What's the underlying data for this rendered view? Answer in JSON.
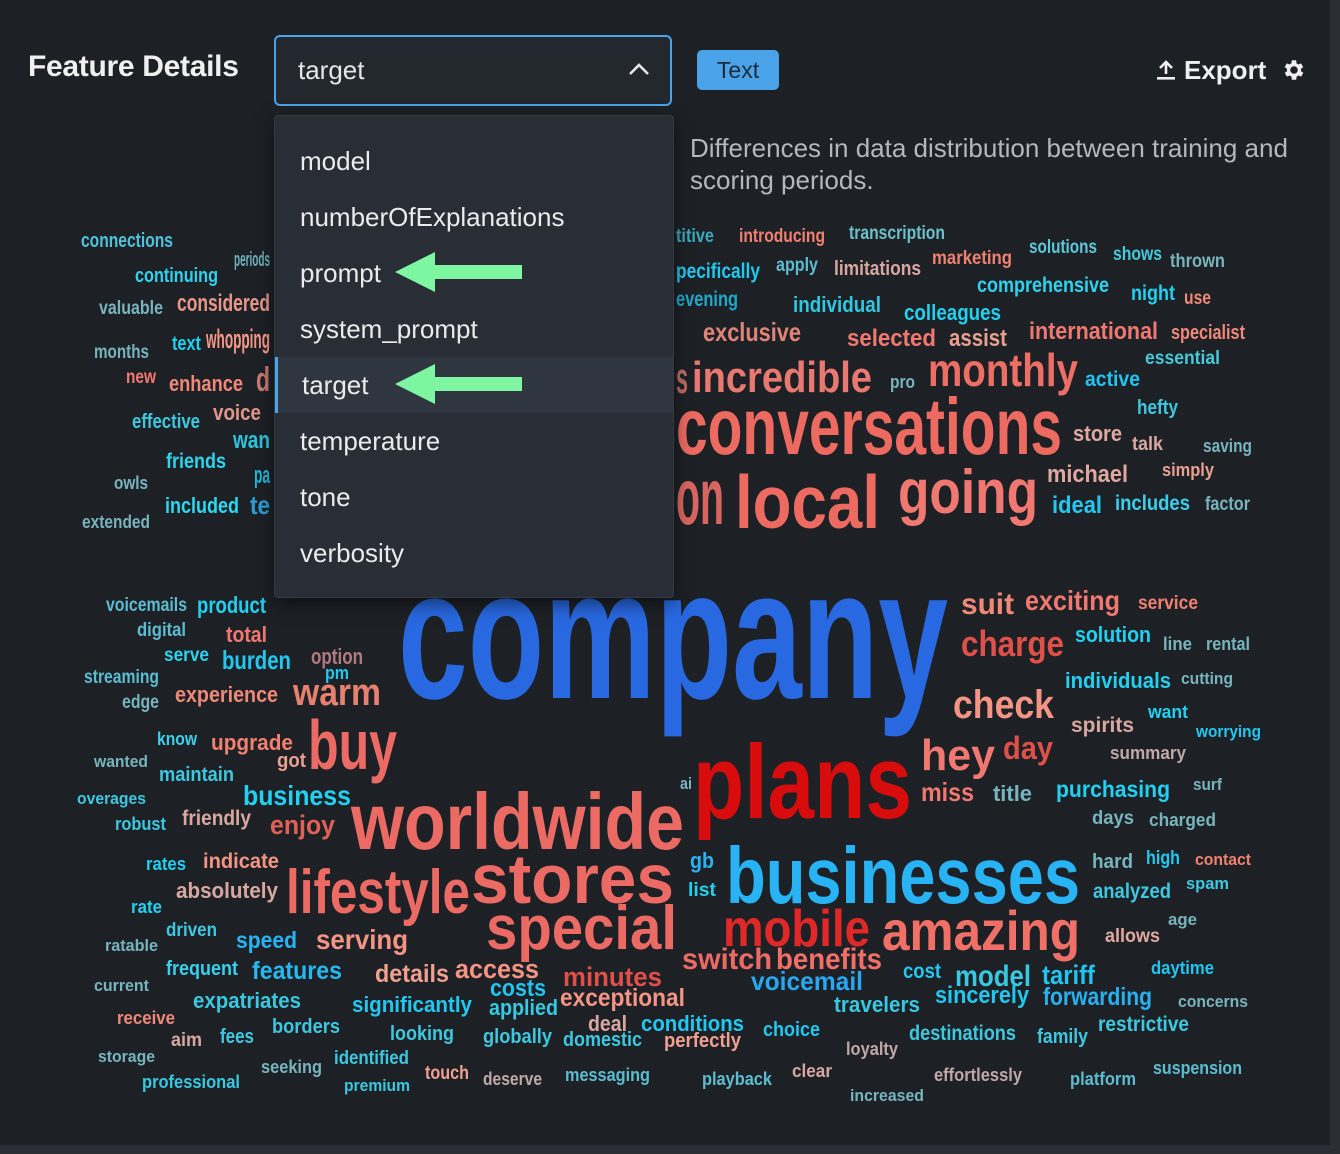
{
  "header": {
    "title": "Feature Details",
    "select": {
      "value": "target",
      "icon": "chevron-up-icon"
    },
    "type_badge": "Text",
    "export_label": "Export",
    "export_icon": "upload-icon",
    "settings_icon": "gear-icon"
  },
  "description": "Differences in data distribution between training and scoring periods.",
  "dropdown": {
    "options": [
      "model",
      "numberOfExplanations",
      "prompt",
      "system_prompt",
      "target",
      "temperature",
      "tone",
      "verbosity"
    ],
    "selected": "target",
    "annotation_arrow_color": "#7ef5a0",
    "annotated_options": [
      "prompt",
      "target"
    ]
  },
  "colors": {
    "accent": "#4aa3e8",
    "background": "#1d2126"
  },
  "wordcloud": {
    "words": [
      {
        "text": "connections",
        "color": "#4fc3d9"
      },
      {
        "text": "periods",
        "color": "#6fb0bd"
      },
      {
        "text": "continuing",
        "color": "#2ed3ee"
      },
      {
        "text": "valuable",
        "color": "#78b4be"
      },
      {
        "text": "considered",
        "color": "#e8968a"
      },
      {
        "text": "months",
        "color": "#78b4be"
      },
      {
        "text": "text",
        "color": "#22d0f0"
      },
      {
        "text": "whopping",
        "color": "#f59888"
      },
      {
        "text": "new",
        "color": "#f07870"
      },
      {
        "text": "enhance",
        "color": "#f08878"
      },
      {
        "text": "d",
        "color": "#c97a70"
      },
      {
        "text": "voice",
        "color": "#e0968a"
      },
      {
        "text": "effective",
        "color": "#3ec8e0"
      },
      {
        "text": "wan",
        "color": "#2cc4dc"
      },
      {
        "text": "friends",
        "color": "#2ed3ee"
      },
      {
        "text": "pa",
        "color": "#22b8d8"
      },
      {
        "text": "owls",
        "color": "#78b4be"
      },
      {
        "text": "included",
        "color": "#2ed8f0"
      },
      {
        "text": "te",
        "color": "#2a9fd6"
      },
      {
        "text": "extended",
        "color": "#78b4be"
      },
      {
        "text": "voicemails",
        "color": "#5cbcd0"
      },
      {
        "text": "product",
        "color": "#22d0f0"
      },
      {
        "text": "digital",
        "color": "#5cbcd0"
      },
      {
        "text": "total",
        "color": "#f07870"
      },
      {
        "text": "serve",
        "color": "#2ed3ee"
      },
      {
        "text": "burden",
        "color": "#22c8ee"
      },
      {
        "text": "option",
        "color": "#b07a80"
      },
      {
        "text": "streaming",
        "color": "#5cbcd0"
      },
      {
        "text": "edge",
        "color": "#78b4be"
      },
      {
        "text": "experience",
        "color": "#f08878"
      },
      {
        "text": "warm",
        "color": "#e88070"
      },
      {
        "text": "company",
        "color": "#2868e0"
      },
      {
        "text": "on",
        "color": "#d86660"
      },
      {
        "text": "s",
        "color": "#c06a64"
      },
      {
        "text": "titive",
        "color": "#3aaabc"
      },
      {
        "text": "introducing",
        "color": "#f08070"
      },
      {
        "text": "transcription",
        "color": "#6cc0cc"
      },
      {
        "text": "pecifically",
        "color": "#22c8ee"
      },
      {
        "text": "apply",
        "color": "#5cbcd0"
      },
      {
        "text": "limitations",
        "color": "#d8a8a0"
      },
      {
        "text": "marketing",
        "color": "#f08070"
      },
      {
        "text": "solutions",
        "color": "#5cc8d8"
      },
      {
        "text": "shows",
        "color": "#48c8d8"
      },
      {
        "text": "thrown",
        "color": "#78b4be"
      },
      {
        "text": "comprehensive",
        "color": "#2ed3ee"
      },
      {
        "text": "night",
        "color": "#22d0f0"
      },
      {
        "text": "use",
        "color": "#f08878"
      },
      {
        "text": "evening",
        "color": "#20a8c8"
      },
      {
        "text": "individual",
        "color": "#2ec8e0"
      },
      {
        "text": "colleagues",
        "color": "#22d0f0"
      },
      {
        "text": "exclusive",
        "color": "#e08478"
      },
      {
        "text": "selected",
        "color": "#f07870"
      },
      {
        "text": "assist",
        "color": "#e8a090"
      },
      {
        "text": "international",
        "color": "#f07870"
      },
      {
        "text": "specialist",
        "color": "#f08878"
      },
      {
        "text": "essential",
        "color": "#48c8d8"
      },
      {
        "text": "incredible",
        "color": "#e87870"
      },
      {
        "text": "pro",
        "color": "#78b4be"
      },
      {
        "text": "monthly",
        "color": "#ec6e64"
      },
      {
        "text": "active",
        "color": "#22c4f0"
      },
      {
        "text": "hefty",
        "color": "#3ec8e0"
      },
      {
        "text": "conversations",
        "color": "#ec6a60"
      },
      {
        "text": "store",
        "color": "#e0a8a0"
      },
      {
        "text": "talk",
        "color": "#d8a8a0"
      },
      {
        "text": "saving",
        "color": "#78b4be"
      },
      {
        "text": "michael",
        "color": "#e0a8a0"
      },
      {
        "text": "simply",
        "color": "#e8a090"
      },
      {
        "text": "local",
        "color": "#ec6a60"
      },
      {
        "text": "going",
        "color": "#f07870"
      },
      {
        "text": "ideal",
        "color": "#22c8f0"
      },
      {
        "text": "includes",
        "color": "#38d0ec"
      },
      {
        "text": "factor",
        "color": "#78b4be"
      },
      {
        "text": "suit",
        "color": "#f08878"
      },
      {
        "text": "exciting",
        "color": "#f07870"
      },
      {
        "text": "service",
        "color": "#f08070"
      },
      {
        "text": "solution",
        "color": "#22d0f0"
      },
      {
        "text": "line",
        "color": "#78b4be"
      },
      {
        "text": "rental",
        "color": "#78b4be"
      },
      {
        "text": "charge",
        "color": "#e05048"
      },
      {
        "text": "individuals",
        "color": "#22d0f0"
      },
      {
        "text": "cutting",
        "color": "#78b4be"
      },
      {
        "text": "check",
        "color": "#f49484"
      },
      {
        "text": "want",
        "color": "#22d0f0"
      },
      {
        "text": "spirits",
        "color": "#d8a8a0"
      },
      {
        "text": "worrying",
        "color": "#22c8ee"
      },
      {
        "text": "summary",
        "color": "#c0a8a8"
      },
      {
        "text": "hey",
        "color": "#f07870"
      },
      {
        "text": "day",
        "color": "#e05048"
      },
      {
        "text": "plans",
        "color": "#d80c0c"
      },
      {
        "text": "buy",
        "color": "#ec6a64"
      },
      {
        "text": "stores",
        "color": "#ec6a64"
      },
      {
        "text": "pm",
        "color": "#22c8ee"
      },
      {
        "text": "know",
        "color": "#3ed0e8"
      },
      {
        "text": "upgrade",
        "color": "#f08070"
      },
      {
        "text": "got",
        "color": "#e8a090"
      },
      {
        "text": "wanted",
        "color": "#78b4be"
      },
      {
        "text": "maintain",
        "color": "#3ec8e0"
      },
      {
        "text": "business",
        "color": "#22d0f0"
      },
      {
        "text": "miss",
        "color": "#f07870"
      },
      {
        "text": "title",
        "color": "#78b4be"
      },
      {
        "text": "purchasing",
        "color": "#22d0f0"
      },
      {
        "text": "surf",
        "color": "#78b4be"
      },
      {
        "text": "overages",
        "color": "#3ec8e0"
      },
      {
        "text": "robust",
        "color": "#3ec8e0"
      },
      {
        "text": "friendly",
        "color": "#d8a8a0"
      },
      {
        "text": "enjoy",
        "color": "#e06058"
      },
      {
        "text": "worldwide",
        "color": "#ec6a64"
      },
      {
        "text": "ai",
        "color": "#78b4be"
      },
      {
        "text": "businesses",
        "color": "#28b4f4"
      },
      {
        "text": "days",
        "color": "#78b4be"
      },
      {
        "text": "charged",
        "color": "#78b4be"
      },
      {
        "text": "gb",
        "color": "#28b4f4"
      },
      {
        "text": "hard",
        "color": "#78b4be"
      },
      {
        "text": "high",
        "color": "#22c8f0"
      },
      {
        "text": "contact",
        "color": "#f08070"
      },
      {
        "text": "rates",
        "color": "#22d0f0"
      },
      {
        "text": "indicate",
        "color": "#f49484"
      },
      {
        "text": "absolutely",
        "color": "#d8a8a0"
      },
      {
        "text": "lifestyle",
        "color": "#ec6a64"
      },
      {
        "text": "special",
        "color": "#ec6a64"
      },
      {
        "text": "list",
        "color": "#22d0f0"
      },
      {
        "text": "mobile",
        "color": "#e02828"
      },
      {
        "text": "amazing",
        "color": "#f07068"
      },
      {
        "text": "analyzed",
        "color": "#3ec8e0"
      },
      {
        "text": "spam",
        "color": "#3ec8e0"
      },
      {
        "text": "rate",
        "color": "#22d0f0"
      },
      {
        "text": "age",
        "color": "#78b4be"
      },
      {
        "text": "driven",
        "color": "#3ec8e0"
      },
      {
        "text": "ratable",
        "color": "#78b4be"
      },
      {
        "text": "speed",
        "color": "#28b4f4"
      },
      {
        "text": "serving",
        "color": "#f49484"
      },
      {
        "text": "access",
        "color": "#f49484"
      },
      {
        "text": "minutes",
        "color": "#e05048"
      },
      {
        "text": "switch",
        "color": "#ec6a64"
      },
      {
        "text": "benefits",
        "color": "#f07068"
      },
      {
        "text": "cost",
        "color": "#22c8f0"
      },
      {
        "text": "model",
        "color": "#38c8e0"
      },
      {
        "text": "tariff",
        "color": "#22c4f0"
      },
      {
        "text": "allows",
        "color": "#e0a8a0"
      },
      {
        "text": "current",
        "color": "#78b4be"
      },
      {
        "text": "frequent",
        "color": "#38d0ec"
      },
      {
        "text": "features",
        "color": "#28b8f0"
      },
      {
        "text": "details",
        "color": "#f0a090"
      },
      {
        "text": "costs",
        "color": "#22c4f0"
      },
      {
        "text": "exceptional",
        "color": "#f49484"
      },
      {
        "text": "voicemail",
        "color": "#28a8f0"
      },
      {
        "text": "daytime",
        "color": "#22c4f0"
      },
      {
        "text": "receive",
        "color": "#f08878"
      },
      {
        "text": "expatriates",
        "color": "#38c8e0"
      },
      {
        "text": "significantly",
        "color": "#22c8f0"
      },
      {
        "text": "applied",
        "color": "#38c8e0"
      },
      {
        "text": "deal",
        "color": "#d8a8a0"
      },
      {
        "text": "conditions",
        "color": "#22c8f0"
      },
      {
        "text": "travelers",
        "color": "#38c8e0"
      },
      {
        "text": "sincerely",
        "color": "#22c8f0"
      },
      {
        "text": "forwarding",
        "color": "#28b0f0"
      },
      {
        "text": "concerns",
        "color": "#78b4be"
      },
      {
        "text": "aim",
        "color": "#d8a8a0"
      },
      {
        "text": "fees",
        "color": "#3ec8e0"
      },
      {
        "text": "borders",
        "color": "#3ec8e0"
      },
      {
        "text": "looking",
        "color": "#3ec8e0"
      },
      {
        "text": "globally",
        "color": "#3ec8e0"
      },
      {
        "text": "domestic",
        "color": "#3ec8e0"
      },
      {
        "text": "perfectly",
        "color": "#f0a090"
      },
      {
        "text": "choice",
        "color": "#22c8f0"
      },
      {
        "text": "destinations",
        "color": "#3ec8e0"
      },
      {
        "text": "family",
        "color": "#3ec8e0"
      },
      {
        "text": "restrictive",
        "color": "#3ec8e0"
      },
      {
        "text": "loyalty",
        "color": "#c0a8a8"
      },
      {
        "text": "storage",
        "color": "#78b4be"
      },
      {
        "text": "seeking",
        "color": "#78b4be"
      },
      {
        "text": "identified",
        "color": "#3ec8e0"
      },
      {
        "text": "touch",
        "color": "#f0a090"
      },
      {
        "text": "deserve",
        "color": "#c0a8a8"
      },
      {
        "text": "messaging",
        "color": "#5cbcd0"
      },
      {
        "text": "playback",
        "color": "#5cbcd0"
      },
      {
        "text": "clear",
        "color": "#d8a8a0"
      },
      {
        "text": "effortlessly",
        "color": "#c0a8a8"
      },
      {
        "text": "platform",
        "color": "#5cbcd0"
      },
      {
        "text": "suspension",
        "color": "#5cbcd0"
      },
      {
        "text": "professional",
        "color": "#38c8e0"
      },
      {
        "text": "premium",
        "color": "#38c8e0"
      },
      {
        "text": "increased",
        "color": "#78b4be"
      }
    ]
  }
}
